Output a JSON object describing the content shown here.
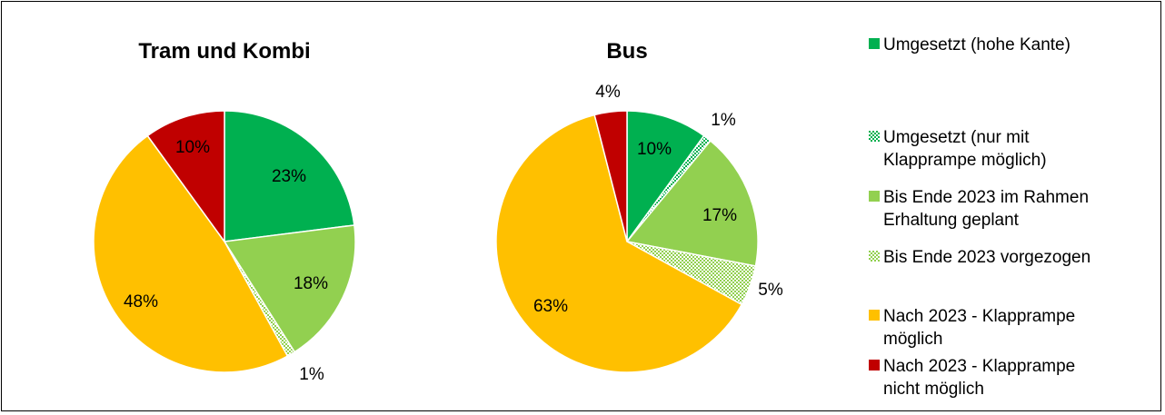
{
  "colors": {
    "green": "#00B050",
    "light_green": "#92D050",
    "yellow": "#FFC000",
    "red": "#C00000"
  },
  "chart_data": [
    {
      "type": "pie",
      "title": "Tram und Kombi",
      "slices": [
        {
          "category": "Umgesetzt (hohe Kante)",
          "value": 23,
          "label": "23%"
        },
        {
          "category": "Umgesetzt (nur mit Klapprampe möglich)",
          "value": 0,
          "label": ""
        },
        {
          "category": "Bis Ende 2023 im Rahmen Erhaltung geplant",
          "value": 18,
          "label": "18%"
        },
        {
          "category": "Bis Ende 2023 vorgezogen",
          "value": 1,
          "label": "1%"
        },
        {
          "category": "Nach 2023 - Klapprampe möglich",
          "value": 48,
          "label": "48%"
        },
        {
          "category": "Nach 2023 - Klapprampe nicht möglich",
          "value": 10,
          "label": "10%"
        }
      ]
    },
    {
      "type": "pie",
      "title": "Bus",
      "slices": [
        {
          "category": "Umgesetzt (hohe Kante)",
          "value": 10,
          "label": "10%"
        },
        {
          "category": "Umgesetzt (nur mit Klapprampe möglich)",
          "value": 1,
          "label": "1%"
        },
        {
          "category": "Bis Ende 2023 im Rahmen Erhaltung geplant",
          "value": 17,
          "label": "17%"
        },
        {
          "category": "Bis Ende 2023 vorgezogen",
          "value": 5,
          "label": "5%"
        },
        {
          "category": "Nach 2023 - Klapprampe möglich",
          "value": 63,
          "label": "63%"
        },
        {
          "category": "Nach 2023 - Klapprampe nicht möglich",
          "value": 4,
          "label": "4%"
        }
      ]
    }
  ],
  "legend": [
    {
      "lines": [
        "Umgesetzt (hohe Kante)"
      ],
      "color": "#00B050",
      "pattern": "solid"
    },
    {
      "lines": [
        "Umgesetzt (nur mit",
        "Klapprampe möglich)"
      ],
      "color": "#00B050",
      "pattern": "dots"
    },
    {
      "lines": [
        "Bis Ende 2023 im Rahmen",
        "Erhaltung geplant"
      ],
      "color": "#92D050",
      "pattern": "solid"
    },
    {
      "lines": [
        "Bis Ende 2023 vorgezogen"
      ],
      "color": "#92D050",
      "pattern": "dots"
    },
    {
      "lines": [
        "Nach 2023 - Klapprampe",
        "möglich"
      ],
      "color": "#FFC000",
      "pattern": "solid"
    },
    {
      "lines": [
        "Nach 2023 - Klapprampe",
        "nicht möglich"
      ],
      "color": "#C00000",
      "pattern": "solid"
    }
  ]
}
